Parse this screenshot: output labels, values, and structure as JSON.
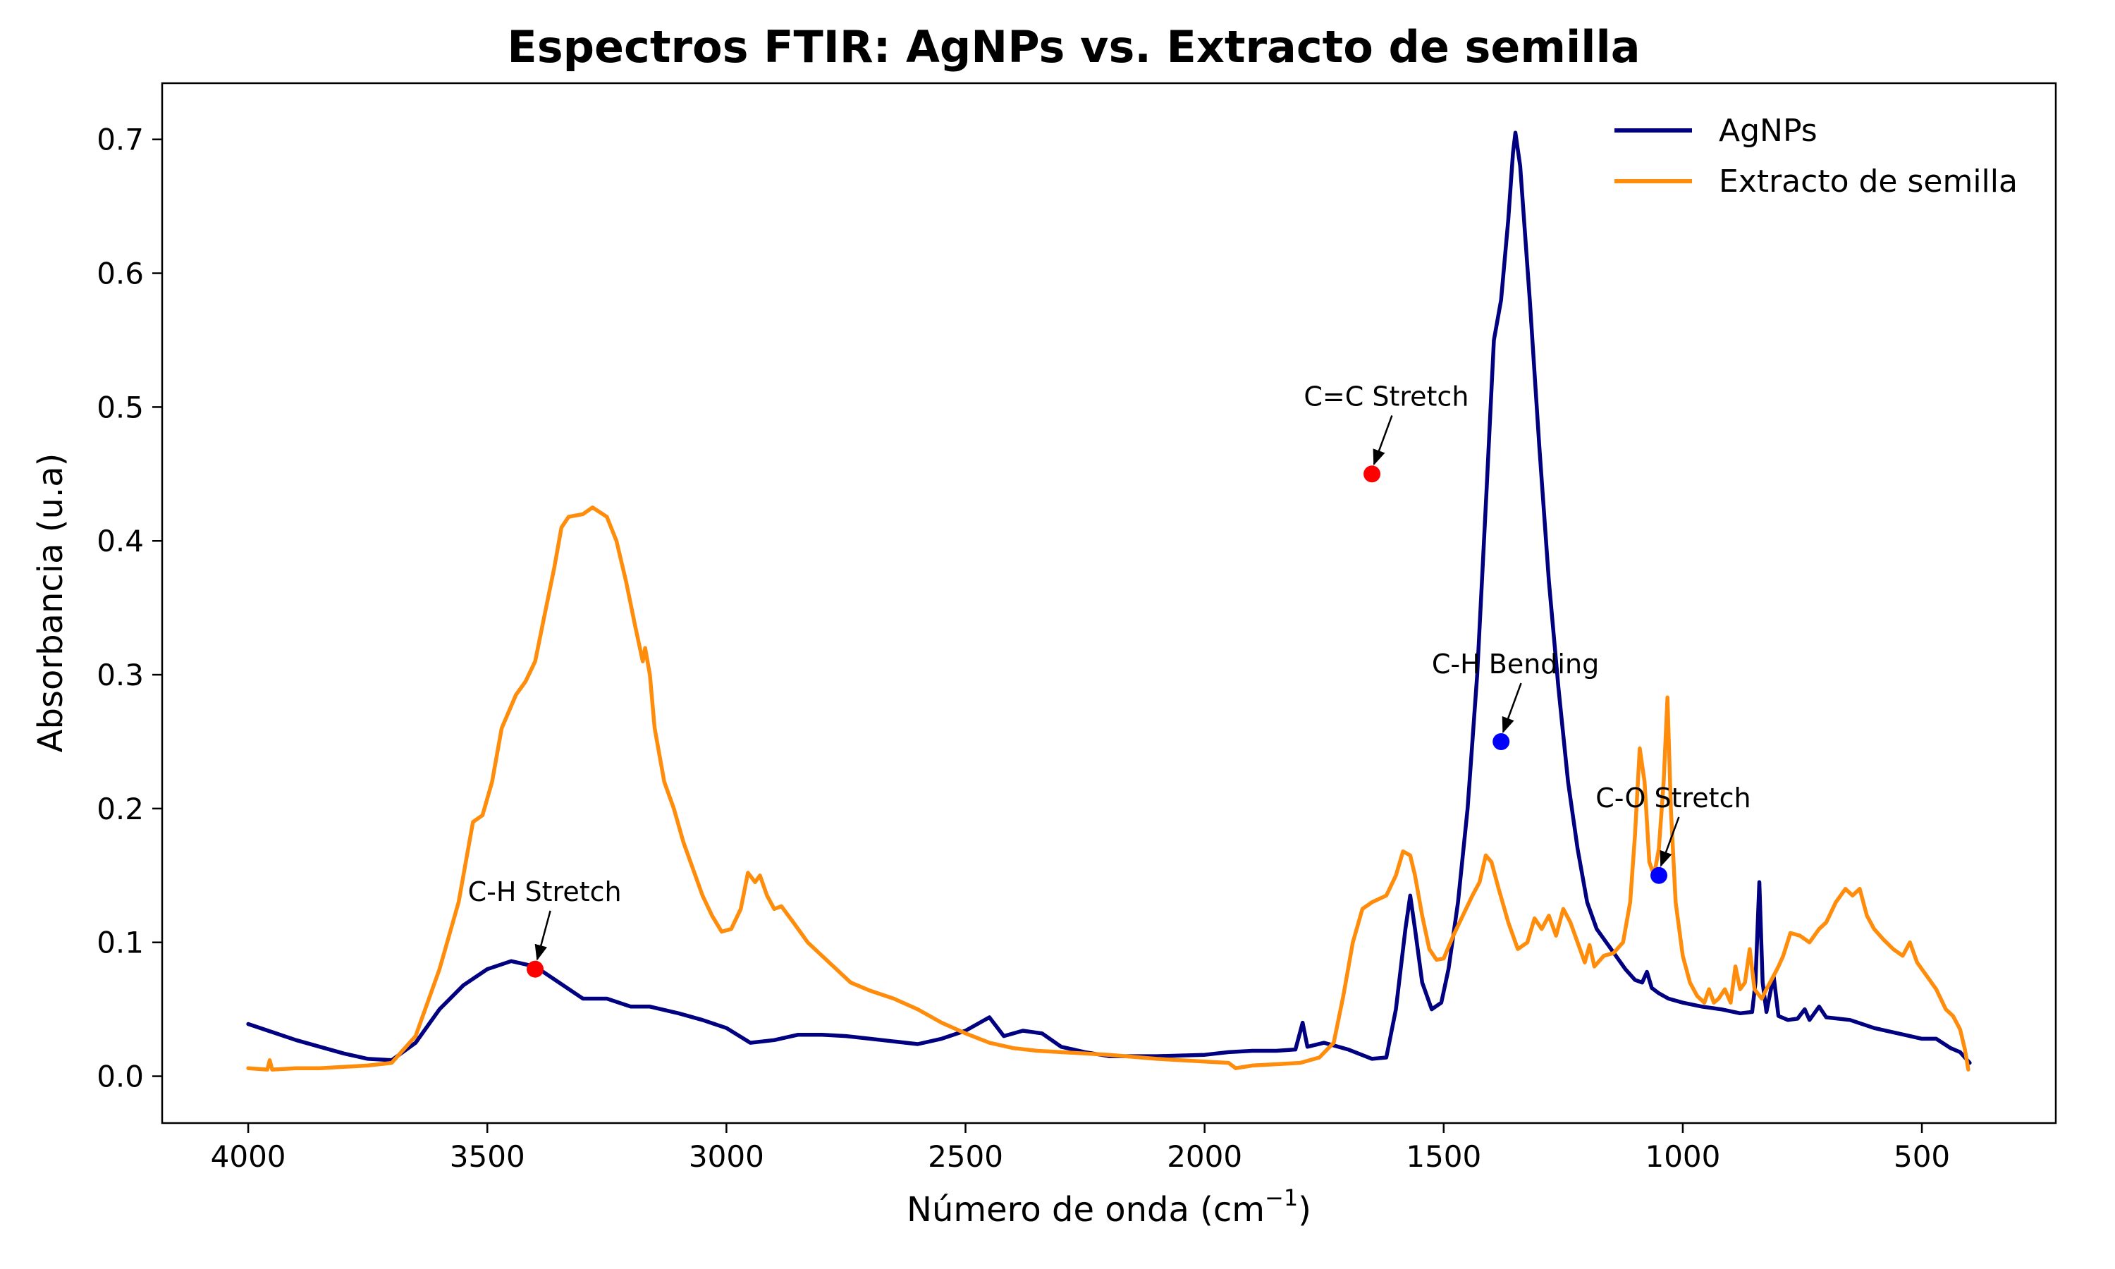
{
  "chart_data": {
    "type": "line",
    "title": "Espectros FTIR: AgNPs vs. Extracto de semilla",
    "xlabel_main": "Número de onda (cm",
    "xlabel_sup": "−1",
    "xlabel_tail": ")",
    "ylabel": "Absorbancia (u.a)",
    "xlim": [
      4180,
      220
    ],
    "ylim": [
      -0.035,
      0.742
    ],
    "x_reversed": true,
    "grid": false,
    "legend_position": "top-right",
    "x_ticks": [
      4000,
      3500,
      3000,
      2500,
      2000,
      1500,
      1000,
      500
    ],
    "y_ticks": [
      0.0,
      0.1,
      0.2,
      0.3,
      0.4,
      0.5,
      0.6,
      0.7
    ],
    "y_tick_labels": [
      "0.0",
      "0.1",
      "0.2",
      "0.3",
      "0.4",
      "0.5",
      "0.6",
      "0.7"
    ],
    "series": [
      {
        "name": "AgNPs",
        "color": "#000080",
        "points": [
          [
            4000,
            0.039
          ],
          [
            3950,
            0.033
          ],
          [
            3900,
            0.027
          ],
          [
            3850,
            0.022
          ],
          [
            3800,
            0.017
          ],
          [
            3750,
            0.013
          ],
          [
            3700,
            0.012
          ],
          [
            3650,
            0.025
          ],
          [
            3600,
            0.05
          ],
          [
            3550,
            0.068
          ],
          [
            3500,
            0.08
          ],
          [
            3450,
            0.086
          ],
          [
            3400,
            0.082
          ],
          [
            3350,
            0.07
          ],
          [
            3300,
            0.058
          ],
          [
            3250,
            0.058
          ],
          [
            3200,
            0.052
          ],
          [
            3160,
            0.052
          ],
          [
            3100,
            0.047
          ],
          [
            3050,
            0.042
          ],
          [
            3000,
            0.036
          ],
          [
            2950,
            0.025
          ],
          [
            2900,
            0.027
          ],
          [
            2850,
            0.031
          ],
          [
            2800,
            0.031
          ],
          [
            2750,
            0.03
          ],
          [
            2700,
            0.028
          ],
          [
            2650,
            0.026
          ],
          [
            2600,
            0.024
          ],
          [
            2550,
            0.028
          ],
          [
            2500,
            0.034
          ],
          [
            2450,
            0.044
          ],
          [
            2420,
            0.03
          ],
          [
            2380,
            0.034
          ],
          [
            2340,
            0.032
          ],
          [
            2300,
            0.022
          ],
          [
            2250,
            0.018
          ],
          [
            2200,
            0.015
          ],
          [
            2100,
            0.015
          ],
          [
            2000,
            0.016
          ],
          [
            1950,
            0.018
          ],
          [
            1900,
            0.019
          ],
          [
            1850,
            0.019
          ],
          [
            1810,
            0.02
          ],
          [
            1795,
            0.04
          ],
          [
            1785,
            0.022
          ],
          [
            1750,
            0.025
          ],
          [
            1700,
            0.02
          ],
          [
            1650,
            0.013
          ],
          [
            1620,
            0.014
          ],
          [
            1600,
            0.05
          ],
          [
            1580,
            0.11
          ],
          [
            1570,
            0.135
          ],
          [
            1560,
            0.11
          ],
          [
            1545,
            0.07
          ],
          [
            1525,
            0.05
          ],
          [
            1505,
            0.055
          ],
          [
            1490,
            0.08
          ],
          [
            1470,
            0.13
          ],
          [
            1450,
            0.2
          ],
          [
            1430,
            0.3
          ],
          [
            1410,
            0.44
          ],
          [
            1395,
            0.55
          ],
          [
            1380,
            0.58
          ],
          [
            1365,
            0.64
          ],
          [
            1355,
            0.69
          ],
          [
            1350,
            0.705
          ],
          [
            1340,
            0.68
          ],
          [
            1320,
            0.58
          ],
          [
            1300,
            0.47
          ],
          [
            1280,
            0.37
          ],
          [
            1260,
            0.29
          ],
          [
            1240,
            0.22
          ],
          [
            1220,
            0.17
          ],
          [
            1200,
            0.13
          ],
          [
            1180,
            0.11
          ],
          [
            1160,
            0.1
          ],
          [
            1140,
            0.09
          ],
          [
            1120,
            0.08
          ],
          [
            1100,
            0.072
          ],
          [
            1085,
            0.07
          ],
          [
            1075,
            0.078
          ],
          [
            1065,
            0.066
          ],
          [
            1050,
            0.062
          ],
          [
            1030,
            0.058
          ],
          [
            1000,
            0.055
          ],
          [
            960,
            0.052
          ],
          [
            920,
            0.05
          ],
          [
            880,
            0.047
          ],
          [
            855,
            0.048
          ],
          [
            848,
            0.07
          ],
          [
            840,
            0.145
          ],
          [
            833,
            0.07
          ],
          [
            825,
            0.048
          ],
          [
            810,
            0.075
          ],
          [
            800,
            0.045
          ],
          [
            780,
            0.042
          ],
          [
            760,
            0.043
          ],
          [
            745,
            0.05
          ],
          [
            735,
            0.042
          ],
          [
            715,
            0.052
          ],
          [
            700,
            0.044
          ],
          [
            650,
            0.042
          ],
          [
            600,
            0.036
          ],
          [
            550,
            0.032
          ],
          [
            500,
            0.028
          ],
          [
            470,
            0.028
          ],
          [
            440,
            0.021
          ],
          [
            420,
            0.018
          ],
          [
            400,
            0.01
          ]
        ]
      },
      {
        "name": "Extracto de semilla",
        "color": "#ff8c0a",
        "points": [
          [
            4000,
            0.006
          ],
          [
            3960,
            0.005
          ],
          [
            3955,
            0.012
          ],
          [
            3950,
            0.005
          ],
          [
            3900,
            0.006
          ],
          [
            3850,
            0.006
          ],
          [
            3800,
            0.007
          ],
          [
            3750,
            0.008
          ],
          [
            3700,
            0.01
          ],
          [
            3650,
            0.03
          ],
          [
            3600,
            0.08
          ],
          [
            3560,
            0.13
          ],
          [
            3540,
            0.17
          ],
          [
            3530,
            0.19
          ],
          [
            3510,
            0.195
          ],
          [
            3490,
            0.22
          ],
          [
            3470,
            0.26
          ],
          [
            3440,
            0.285
          ],
          [
            3420,
            0.295
          ],
          [
            3400,
            0.31
          ],
          [
            3380,
            0.345
          ],
          [
            3360,
            0.38
          ],
          [
            3345,
            0.41
          ],
          [
            3330,
            0.418
          ],
          [
            3300,
            0.42
          ],
          [
            3280,
            0.425
          ],
          [
            3250,
            0.418
          ],
          [
            3230,
            0.4
          ],
          [
            3210,
            0.37
          ],
          [
            3190,
            0.335
          ],
          [
            3175,
            0.31
          ],
          [
            3170,
            0.32
          ],
          [
            3160,
            0.3
          ],
          [
            3150,
            0.26
          ],
          [
            3130,
            0.22
          ],
          [
            3110,
            0.2
          ],
          [
            3090,
            0.175
          ],
          [
            3070,
            0.155
          ],
          [
            3050,
            0.135
          ],
          [
            3030,
            0.12
          ],
          [
            3010,
            0.108
          ],
          [
            2990,
            0.11
          ],
          [
            2970,
            0.125
          ],
          [
            2955,
            0.152
          ],
          [
            2940,
            0.145
          ],
          [
            2930,
            0.15
          ],
          [
            2915,
            0.135
          ],
          [
            2900,
            0.125
          ],
          [
            2885,
            0.127
          ],
          [
            2860,
            0.115
          ],
          [
            2830,
            0.1
          ],
          [
            2800,
            0.09
          ],
          [
            2770,
            0.08
          ],
          [
            2740,
            0.07
          ],
          [
            2700,
            0.064
          ],
          [
            2650,
            0.058
          ],
          [
            2600,
            0.05
          ],
          [
            2550,
            0.04
          ],
          [
            2500,
            0.032
          ],
          [
            2450,
            0.025
          ],
          [
            2400,
            0.021
          ],
          [
            2350,
            0.019
          ],
          [
            2300,
            0.018
          ],
          [
            2250,
            0.017
          ],
          [
            2200,
            0.016
          ],
          [
            2100,
            0.013
          ],
          [
            2000,
            0.011
          ],
          [
            1950,
            0.01
          ],
          [
            1935,
            0.006
          ],
          [
            1900,
            0.008
          ],
          [
            1850,
            0.009
          ],
          [
            1800,
            0.01
          ],
          [
            1760,
            0.014
          ],
          [
            1730,
            0.025
          ],
          [
            1710,
            0.06
          ],
          [
            1690,
            0.1
          ],
          [
            1670,
            0.125
          ],
          [
            1650,
            0.13
          ],
          [
            1620,
            0.135
          ],
          [
            1600,
            0.15
          ],
          [
            1585,
            0.168
          ],
          [
            1570,
            0.165
          ],
          [
            1560,
            0.15
          ],
          [
            1545,
            0.12
          ],
          [
            1530,
            0.095
          ],
          [
            1515,
            0.087
          ],
          [
            1500,
            0.088
          ],
          [
            1480,
            0.105
          ],
          [
            1460,
            0.12
          ],
          [
            1440,
            0.135
          ],
          [
            1425,
            0.145
          ],
          [
            1412,
            0.165
          ],
          [
            1400,
            0.16
          ],
          [
            1385,
            0.14
          ],
          [
            1365,
            0.115
          ],
          [
            1345,
            0.095
          ],
          [
            1325,
            0.1
          ],
          [
            1310,
            0.118
          ],
          [
            1295,
            0.11
          ],
          [
            1280,
            0.12
          ],
          [
            1265,
            0.105
          ],
          [
            1250,
            0.125
          ],
          [
            1235,
            0.115
          ],
          [
            1220,
            0.1
          ],
          [
            1205,
            0.085
          ],
          [
            1195,
            0.098
          ],
          [
            1185,
            0.082
          ],
          [
            1165,
            0.09
          ],
          [
            1145,
            0.092
          ],
          [
            1125,
            0.1
          ],
          [
            1110,
            0.13
          ],
          [
            1100,
            0.18
          ],
          [
            1090,
            0.245
          ],
          [
            1080,
            0.22
          ],
          [
            1070,
            0.16
          ],
          [
            1060,
            0.15
          ],
          [
            1050,
            0.17
          ],
          [
            1040,
            0.22
          ],
          [
            1032,
            0.283
          ],
          [
            1025,
            0.2
          ],
          [
            1015,
            0.13
          ],
          [
            1000,
            0.09
          ],
          [
            985,
            0.07
          ],
          [
            970,
            0.06
          ],
          [
            955,
            0.055
          ],
          [
            945,
            0.065
          ],
          [
            935,
            0.055
          ],
          [
            925,
            0.058
          ],
          [
            912,
            0.065
          ],
          [
            900,
            0.055
          ],
          [
            890,
            0.082
          ],
          [
            880,
            0.065
          ],
          [
            870,
            0.07
          ],
          [
            860,
            0.095
          ],
          [
            850,
            0.065
          ],
          [
            835,
            0.058
          ],
          [
            825,
            0.065
          ],
          [
            810,
            0.075
          ],
          [
            800,
            0.082
          ],
          [
            790,
            0.09
          ],
          [
            775,
            0.107
          ],
          [
            755,
            0.105
          ],
          [
            735,
            0.1
          ],
          [
            715,
            0.11
          ],
          [
            700,
            0.115
          ],
          [
            680,
            0.13
          ],
          [
            660,
            0.14
          ],
          [
            645,
            0.135
          ],
          [
            630,
            0.14
          ],
          [
            615,
            0.12
          ],
          [
            600,
            0.11
          ],
          [
            580,
            0.102
          ],
          [
            560,
            0.095
          ],
          [
            540,
            0.09
          ],
          [
            525,
            0.1
          ],
          [
            510,
            0.085
          ],
          [
            490,
            0.075
          ],
          [
            470,
            0.065
          ],
          [
            450,
            0.05
          ],
          [
            435,
            0.045
          ],
          [
            420,
            0.035
          ],
          [
            410,
            0.02
          ],
          [
            403,
            0.005
          ]
        ]
      }
    ],
    "annotations": [
      {
        "label": "C-H Stretch",
        "x": 3400,
        "y": 0.08,
        "color": "#ff0000",
        "text_x": 3380,
        "text_y": 0.13
      },
      {
        "label": "C=C Stretch",
        "x": 1650,
        "y": 0.45,
        "color": "#ff0000",
        "text_x": 1620,
        "text_y": 0.5
      },
      {
        "label": "C-H Bending",
        "x": 1380,
        "y": 0.25,
        "color": "#0000ff",
        "text_x": 1350,
        "text_y": 0.3
      },
      {
        "label": "C-O Stretch",
        "x": 1050,
        "y": 0.15,
        "color": "#0000ff",
        "text_x": 1020,
        "text_y": 0.2
      }
    ]
  }
}
